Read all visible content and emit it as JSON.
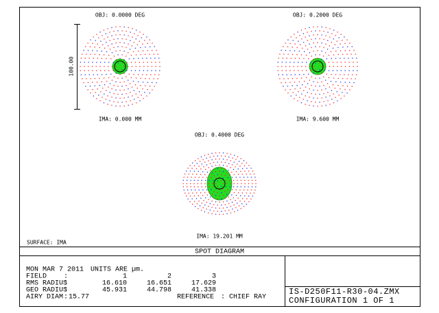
{
  "plots": [
    {
      "object": "OBJ: 0.0000 DEG",
      "image": "IMA: 0.000 MM"
    },
    {
      "object": "OBJ: 0.2000 DEG",
      "image": "IMA: 9.600 MM"
    },
    {
      "object": "OBJ: 0.4000 DEG",
      "image": "IMA: 19.201 MM"
    }
  ],
  "scale": "100.00",
  "surface": "SURFACE: IMA",
  "title": "SPOT DIAGRAM",
  "info": {
    "date": "MON MAR 7 2011",
    "units": "UNITS ARE µm.",
    "rows": [
      [
        "FIELD",
        ":",
        "1",
        "2",
        "3"
      ],
      [
        "RMS RADIUS",
        ":",
        "16.610",
        "16.651",
        "17.629"
      ],
      [
        "GEO RADIUS",
        ":",
        "45.931",
        "44.798",
        "41.338"
      ],
      [
        "AIRY DIAM",
        ":",
        "15.77",
        "REFERENCE",
        ": CHIEF RAY"
      ]
    ]
  },
  "file": "IS-D250F11-R30-04.ZMX",
  "configuration": "CONFIGURATION 1 OF 1"
}
